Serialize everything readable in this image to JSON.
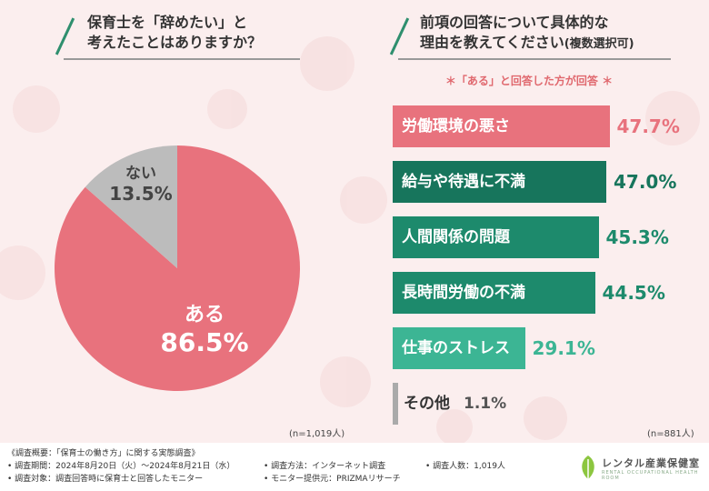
{
  "left_panel": {
    "title_line1": "保育士を「辞めたい」と",
    "title_line2": "考えたことはありますか？",
    "n_note": "(n=1,019人)"
  },
  "right_panel": {
    "title_line1": "前項の回答について具体的な",
    "title_line2": "理由を教えてください",
    "title_suffix": "(複数選択可)",
    "subtitle": "＊「ある」と回答した方が回答 ＊",
    "n_note": "(n=881人)"
  },
  "footer": {
    "line1": "《調査概要：「保育士の働き方」に関する実態調査》",
    "period": "• 調査期間：2024年8月20日（火）〜2024年8月21日（水）",
    "method": "• 調査方法：インターネット調査",
    "count": "• 調査人数：1,019人",
    "target": "• 調査対象：調査回答時に保育士と回答したモニター",
    "provider": "• モニター提供元：PRIZMAリサーチ",
    "logo_text": "レンタル産業保健室",
    "logo_sub": "RENTAL OCCUPATIONAL HEALTH ROOM"
  },
  "colors": {
    "pink": "#e8727d",
    "gray": "#bcbcbc",
    "dark_green": "#17755c",
    "mid_green": "#1d8a6c",
    "light_green": "#3cb594",
    "pale_gray": "#aaaaaa"
  },
  "chart_data": [
    {
      "type": "pie",
      "title": "保育士を「辞めたい」と考えたことはありますか？",
      "slices": [
        {
          "label": "ある",
          "value": 86.5,
          "display": "86.5%"
        },
        {
          "label": "ない",
          "value": 13.5,
          "display": "13.5%"
        }
      ]
    },
    {
      "type": "bar",
      "orientation": "horizontal",
      "title": "前項の回答について具体的な理由を教えてください(複数選択可)",
      "categories": [
        "労働環境の悪さ",
        "給与や待遇に不満",
        "人間関係の問題",
        "長時間労働の不満",
        "仕事のストレス",
        "その他"
      ],
      "values": [
        47.7,
        47.0,
        45.3,
        44.5,
        29.1,
        1.1
      ],
      "displays": [
        "47.7%",
        "47.0%",
        "45.3%",
        "44.5%",
        "29.1%",
        "1.1%"
      ]
    }
  ]
}
